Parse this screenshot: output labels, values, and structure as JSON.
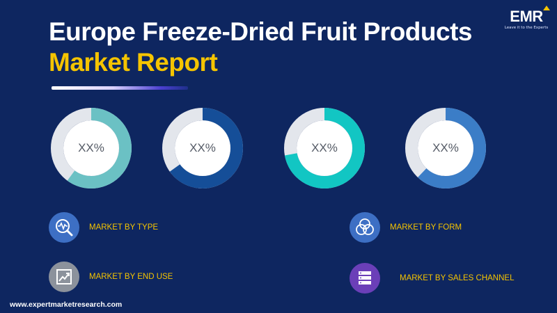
{
  "title": {
    "line1": "Europe Freeze-Dried Fruit Products",
    "line2": "Market Report"
  },
  "logo": {
    "name": "EMR",
    "tagline": "Leave it to the Experts",
    "color_accent": "#f5c400"
  },
  "donuts": [
    {
      "label": "XX%",
      "fraction": 0.6,
      "color": "#6bc1c4",
      "track": "#e3e6ec"
    },
    {
      "label": "XX%",
      "fraction": 0.65,
      "color": "#154e98",
      "track": "#e3e6ec"
    },
    {
      "label": "XX%",
      "fraction": 0.72,
      "color": "#12c6c3",
      "track": "#e3e6ec"
    },
    {
      "label": "XX%",
      "fraction": 0.62,
      "color": "#3b7dc7",
      "track": "#e3e6ec"
    }
  ],
  "segments": {
    "type": {
      "label": "MARKET BY TYPE",
      "icon": "heartbeat-magnifier-icon",
      "color": "#3d6fc4"
    },
    "end_use": {
      "label": "MARKET  BY END USE",
      "icon": "line-chart-icon",
      "color": "#8c929c"
    },
    "form": {
      "label": "MARKET BY FORM",
      "icon": "venn-circles-icon",
      "color": "#3d6fc4"
    },
    "sales_channel": {
      "label": "MARKET BY SALES CHANNEL",
      "icon": "server-stack-icon",
      "color": "#6b3fb8"
    }
  },
  "footer": {
    "website": "www.expertmarketresearch.com"
  },
  "colors": {
    "background": "#0e2660",
    "heading": "#ffffff",
    "highlight": "#f5c400"
  }
}
